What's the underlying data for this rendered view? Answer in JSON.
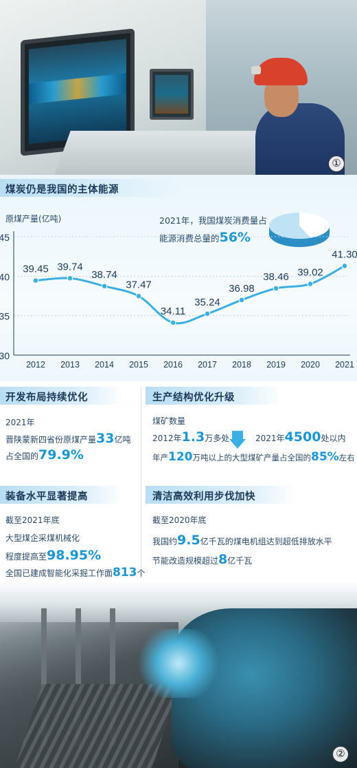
{
  "photo1": {
    "number": "①"
  },
  "photo2": {
    "number": "②"
  },
  "chart_section": {
    "heading": "煤炭仍是我国的主体能源",
    "unit_label": "原煤产量(亿吨)",
    "pie_note_line1": "2021年，我国煤炭消费量占",
    "pie_note_line2_prefix": "能源消费总量的",
    "pie_note_value": "56%"
  },
  "chart_data": {
    "type": "line",
    "categories": [
      "2012",
      "2013",
      "2014",
      "2015",
      "2016",
      "2017",
      "2018",
      "2019",
      "2020",
      "2021"
    ],
    "series": [
      {
        "values": [
          39.45,
          39.74,
          38.74,
          37.47,
          34.11,
          35.24,
          36.98,
          38.46,
          39.02,
          41.3
        ]
      }
    ],
    "value_labels": [
      "39.45",
      "39.74",
      "38.74",
      "37.47",
      "34.11",
      "35.24",
      "36.98",
      "38.46",
      "39.02",
      "41.30"
    ],
    "ylim": [
      30,
      45
    ],
    "yticks": [
      "30",
      "35",
      "40",
      "45"
    ],
    "ylabel": "原煤产量(亿吨)",
    "xlabel": "",
    "pie": {
      "share": 56
    },
    "colors": {
      "line": "#3ab0e4",
      "point": "#3ab0e4",
      "pie_main": "#bfe3f5",
      "pie_slice": "#ffffff",
      "pie_side": "#2b8fc6"
    }
  },
  "panels": {
    "layout": {
      "heading": "开发布局持续优化",
      "year": "2021年",
      "line2_prefix": "晋陕蒙新四省份原煤产量",
      "line2_value": "33",
      "line2_suffix": "亿吨",
      "line3_prefix": "占全国的",
      "line3_value": "79.9%"
    },
    "structure": {
      "heading": "生产结构优化升级",
      "label": "煤矿数量",
      "left_prefix": "2012年",
      "left_value": "1.3",
      "left_suffix": "万多处",
      "right_prefix": "2021年",
      "right_value": "4500",
      "right_suffix": "处以内",
      "line3_prefix": "年产",
      "line3_value1": "120",
      "line3_middle": "万吨以上的大型煤矿产量占全国的",
      "line3_value2": "85%",
      "line3_suffix": "左右"
    },
    "equipment": {
      "heading": "装备水平显著提高",
      "line1": "截至2021年底",
      "line2": "大型煤企采煤机械化",
      "line3_prefix": "程度提高至",
      "line3_value": "98.95%",
      "line4_prefix": "全国已建成智能化采掘工作面",
      "line4_value": "813",
      "line4_suffix": "个"
    },
    "clean": {
      "heading": "清洁高效利用步伐加快",
      "line1": "截至2020年底",
      "line2_prefix": "我国约",
      "line2_value": "9.5",
      "line2_suffix": "亿千瓦的煤电机组达到超低排放水平",
      "line3_prefix": "节能改造规模超过",
      "line3_value": "8",
      "line3_suffix": "亿千瓦"
    }
  }
}
